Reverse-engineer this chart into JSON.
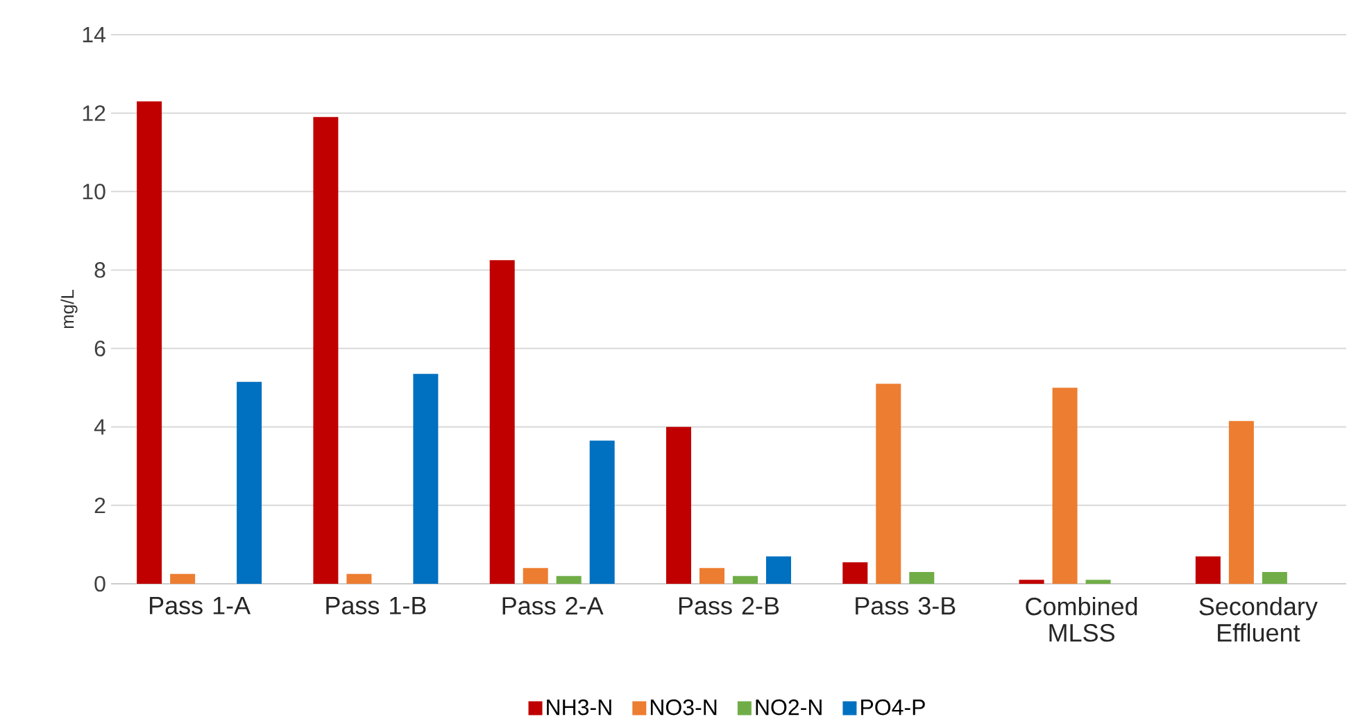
{
  "chart_data": {
    "type": "bar",
    "ylabel": "mg/L",
    "categories": [
      "Pass 1-A",
      "Pass 1-B",
      "Pass 2-A",
      "Pass 2-B",
      "Pass 3-B",
      "Combined MLSS",
      "Secondary Effluent"
    ],
    "series": [
      {
        "name": "NH3-N",
        "color": "#c00000",
        "values": [
          12.3,
          11.9,
          8.25,
          4.0,
          0.55,
          0.1,
          0.7
        ]
      },
      {
        "name": "NO3-N",
        "color": "#ed7d31",
        "values": [
          0.25,
          0.25,
          0.4,
          0.4,
          5.1,
          5.0,
          4.15
        ]
      },
      {
        "name": "NO2-N",
        "color": "#70ad47",
        "values": [
          null,
          null,
          0.2,
          0.2,
          0.3,
          0.1,
          0.3
        ]
      },
      {
        "name": "PO4-P",
        "color": "#0070c0",
        "values": [
          5.15,
          5.35,
          3.65,
          0.7,
          null,
          null,
          null
        ]
      }
    ],
    "ylim": [
      0,
      14
    ],
    "yticks": [
      0,
      2,
      4,
      6,
      8,
      10,
      12,
      14
    ],
    "grid": "y",
    "legend": "bottom"
  }
}
